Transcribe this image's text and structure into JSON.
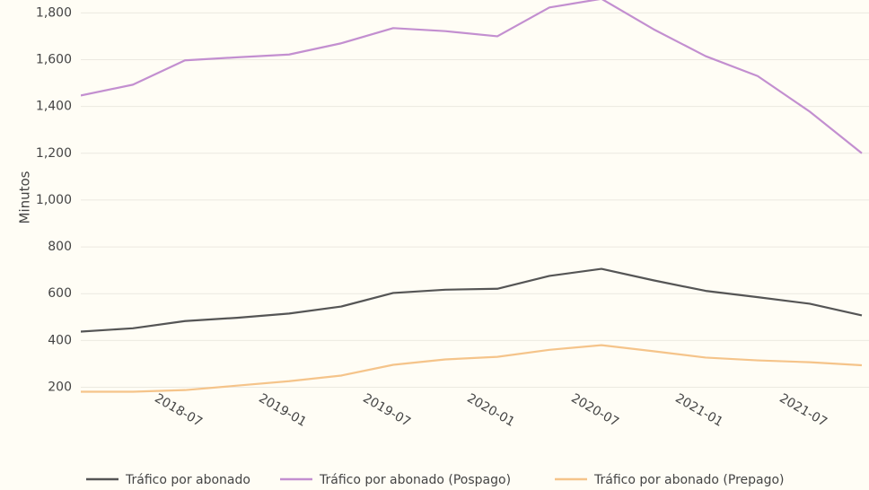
{
  "chart_data": {
    "type": "line",
    "y_label": "Minutos",
    "categories": [
      null,
      null,
      "2018-07",
      null,
      "2019-01",
      null,
      "2019-07",
      null,
      "2020-01",
      null,
      "2020-07",
      null,
      "2021-01",
      null,
      "2021-07",
      null
    ],
    "series": [
      {
        "name": "Tráfico por abonado",
        "color": "#555555",
        "values": [
          438,
          452,
          483,
          497,
          515,
          545,
          603,
          617,
          621,
          676,
          706,
          657,
          612,
          585,
          557,
          507
        ]
      },
      {
        "name": "Tráfico por abonado (Pospago)",
        "color": "#c38fd0",
        "values": [
          1447,
          1493,
          1597,
          1610,
          1622,
          1670,
          1735,
          1722,
          1700,
          1823,
          1860,
          1730,
          1615,
          1530,
          1378,
          1200
        ]
      },
      {
        "name": "Tráfico por abonado (Prepago)",
        "color": "#f5c48a",
        "values": [
          181,
          181,
          188,
          207,
          226,
          250,
          296,
          319,
          330,
          360,
          380,
          354,
          327,
          315,
          307,
          294
        ]
      }
    ],
    "ylim": [
      110,
      1855
    ],
    "yticks": [
      200,
      400,
      600,
      800,
      {
        "value": 1000,
        "label": "1,000"
      },
      {
        "value": 1200,
        "label": "1,200"
      },
      {
        "value": 1400,
        "label": "1,400"
      },
      {
        "value": 1600,
        "label": "1,600"
      },
      {
        "value": 1800,
        "label": "1,800"
      }
    ],
    "grid": true
  }
}
